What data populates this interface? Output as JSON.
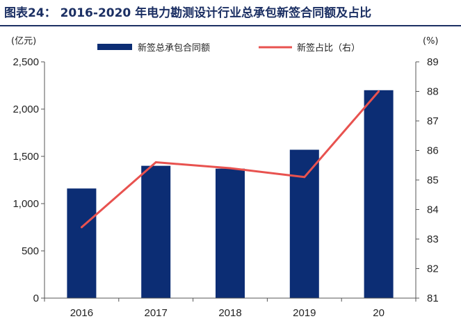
{
  "title": "图表24：  2016-2020 年电力勘测设计行业总承包新签合同额及占比",
  "chart_data": {
    "type": "bar",
    "title": "图表24：  2016-2020 年电力勘测设计行业总承包新签合同额及占比",
    "categories": [
      "2016",
      "2017",
      "2018",
      "2019",
      "20"
    ],
    "series": [
      {
        "name": "新签总承包合同额",
        "type": "bar",
        "axis": "left",
        "values": [
          1160,
          1400,
          1370,
          1570,
          2200
        ],
        "color": "#0c2d74"
      },
      {
        "name": "新签占比（右）",
        "type": "line",
        "axis": "right",
        "values": [
          83.4,
          85.6,
          85.4,
          85.1,
          88.0
        ],
        "color": "#e8524f"
      }
    ],
    "y_left": {
      "unit": "(亿元)",
      "lim": [
        0,
        2500
      ],
      "ticks": [
        "0",
        "500",
        "1,000",
        "1,500",
        "2,000",
        "2,500"
      ]
    },
    "y_right": {
      "unit": "(%)",
      "lim": [
        81,
        89
      ],
      "ticks": [
        "81",
        "82",
        "83",
        "84",
        "85",
        "86",
        "87",
        "88",
        "89"
      ]
    },
    "legend": "top",
    "grid": false
  }
}
